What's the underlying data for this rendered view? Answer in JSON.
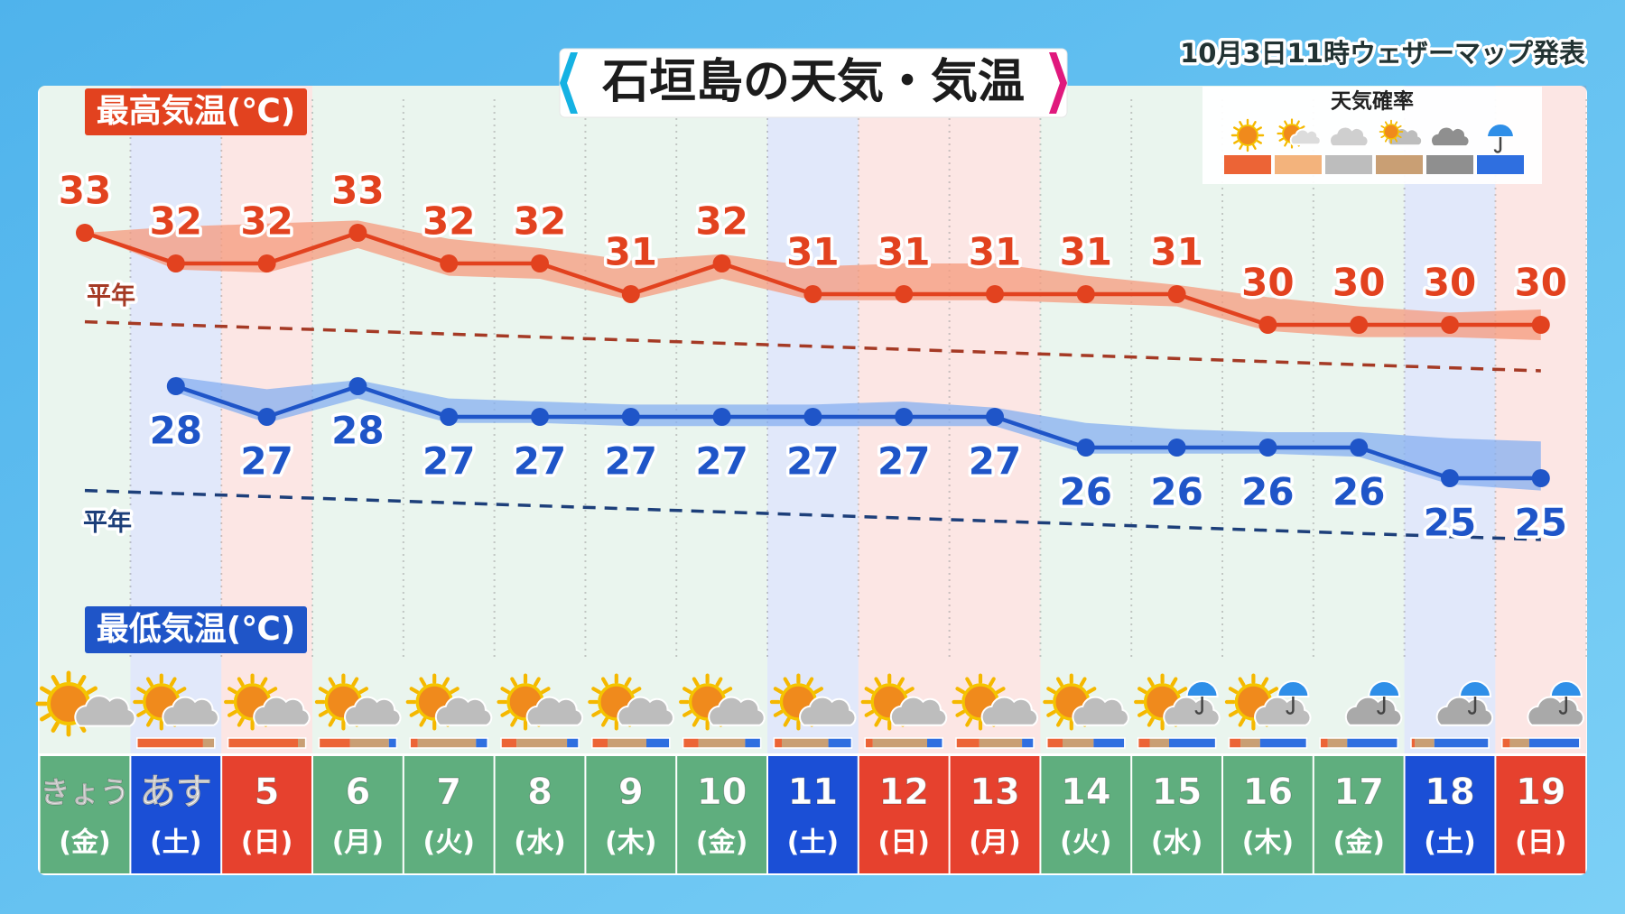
{
  "chart_data": {
    "type": "line",
    "title": "石垣島の天気・気温",
    "subtitle": "10月3日11時ウェザーマップ発表",
    "categories": [
      "きょう",
      "あす",
      "5",
      "6",
      "7",
      "8",
      "9",
      "10",
      "11",
      "12",
      "13",
      "14",
      "15",
      "16",
      "17",
      "18",
      "19"
    ],
    "weekdays": [
      "(金)",
      "(土)",
      "(日)",
      "(月)",
      "(火)",
      "(水)",
      "(木)",
      "(金)",
      "(土)",
      "(日)",
      "(月)",
      "(火)",
      "(水)",
      "(木)",
      "(金)",
      "(土)",
      "(日)"
    ],
    "day_colors": [
      "#5fae7e",
      "#1b4fd6",
      "#e6412e",
      "#5fae7e",
      "#5fae7e",
      "#5fae7e",
      "#5fae7e",
      "#5fae7e",
      "#1b4fd6",
      "#e6412e",
      "#e6412e",
      "#5fae7e",
      "#5fae7e",
      "#5fae7e",
      "#5fae7e",
      "#1b4fd6",
      "#e6412e"
    ],
    "ylim": [
      22,
      34
    ],
    "series": [
      {
        "name": "最高気温(℃)",
        "color": "#e2421f",
        "label_bg": "#e2421f",
        "values": [
          33,
          32,
          32,
          33,
          32,
          32,
          31,
          32,
          31,
          31,
          31,
          31,
          31,
          30,
          30,
          30,
          30
        ],
        "band_upper": [
          33,
          33.2,
          33.3,
          33.4,
          32.8,
          32.5,
          32.1,
          32.3,
          31.9,
          32,
          32,
          31.6,
          31.3,
          30.9,
          30.6,
          30.4,
          30.5
        ],
        "band_lower": [
          33,
          31.8,
          31.7,
          32.5,
          31.6,
          31.5,
          30.8,
          31.5,
          30.8,
          30.8,
          30.8,
          30.7,
          30.6,
          29.8,
          29.6,
          29.6,
          29.5
        ],
        "band_color": "#f59a7c",
        "normal_label": "平年",
        "normal_color": "#a53a25",
        "normal": [
          30.1,
          30.0,
          29.9,
          29.8,
          29.7,
          29.6,
          29.5,
          29.4,
          29.3,
          29.2,
          29.1,
          29.0,
          28.9,
          28.8,
          28.7,
          28.6,
          28.5
        ]
      },
      {
        "name": "最低気温(℃)",
        "color": "#1f55c8",
        "label_bg": "#1f55c8",
        "values": [
          null,
          28,
          27,
          28,
          27,
          27,
          27,
          27,
          27,
          27,
          27,
          26,
          26,
          26,
          26,
          25,
          25
        ],
        "band_upper": [
          null,
          28.3,
          27.9,
          28.2,
          27.6,
          27.5,
          27.4,
          27.4,
          27.4,
          27.5,
          27.3,
          26.8,
          26.6,
          26.5,
          26.5,
          26.3,
          26.2
        ],
        "band_lower": [
          null,
          27.8,
          26.8,
          27.6,
          26.8,
          26.8,
          26.7,
          26.7,
          26.7,
          26.7,
          26.7,
          25.8,
          25.8,
          25.8,
          25.7,
          24.8,
          24.6
        ],
        "band_color": "#86aff0",
        "normal_label": "平年",
        "normal_color": "#1d3f7a",
        "normal": [
          24.6,
          24.5,
          24.4,
          24.3,
          24.2,
          24.1,
          24.0,
          23.9,
          23.8,
          23.7,
          23.6,
          23.5,
          23.4,
          23.3,
          23.2,
          23.1,
          23.0
        ]
      }
    ],
    "weather_probability": {
      "title": "天気確率",
      "colors": [
        "#ec6436",
        "#f3b37c",
        "#bdbdbd",
        "#c99f74",
        "#8f8f8f",
        "#2f6fe0"
      ],
      "values": [
        null,
        [
          85,
          0,
          0,
          15,
          0,
          0
        ],
        [
          90,
          0,
          0,
          10,
          0,
          0
        ],
        [
          40,
          0,
          0,
          50,
          0,
          10
        ],
        [
          10,
          0,
          0,
          75,
          0,
          15
        ],
        [
          20,
          0,
          0,
          65,
          0,
          15
        ],
        [
          20,
          0,
          0,
          50,
          0,
          30
        ],
        [
          20,
          0,
          0,
          60,
          0,
          20
        ],
        [
          10,
          0,
          0,
          60,
          0,
          30
        ],
        [
          10,
          0,
          0,
          70,
          0,
          20
        ],
        [
          30,
          0,
          0,
          55,
          0,
          15
        ],
        [
          20,
          0,
          0,
          40,
          0,
          40
        ],
        [
          15,
          0,
          0,
          25,
          0,
          60
        ],
        [
          15,
          0,
          0,
          25,
          0,
          60
        ],
        [
          10,
          0,
          0,
          25,
          0,
          65
        ],
        [
          5,
          0,
          0,
          25,
          0,
          70
        ],
        [
          10,
          0,
          0,
          25,
          0,
          65
        ]
      ]
    }
  }
}
